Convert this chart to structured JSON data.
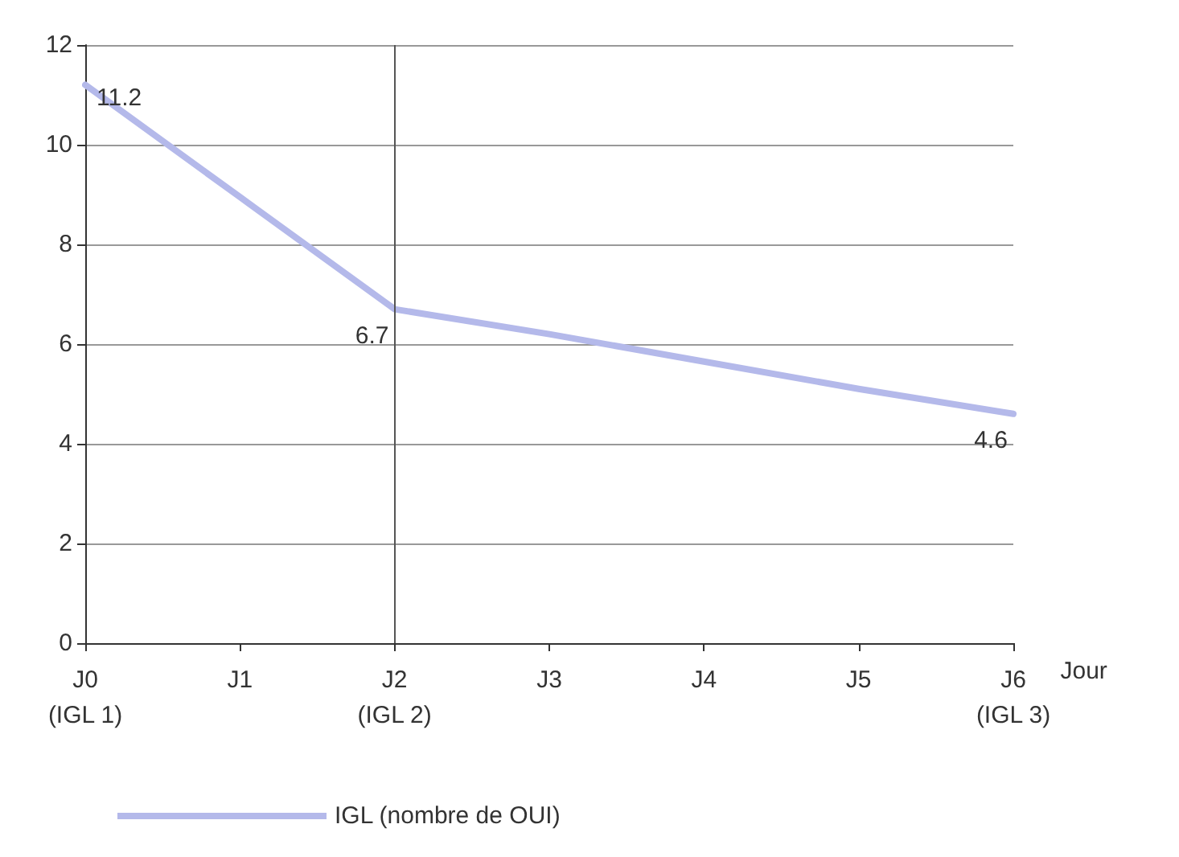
{
  "chart_data": {
    "type": "line",
    "xlabel": "Jour",
    "categories": [
      "J0\n(IGL 1)",
      "J1",
      "J2\n(IGL 2)",
      "J3",
      "J4",
      "J5",
      "J6\n(IGL 3)"
    ],
    "series": [
      {
        "name": "IGL (nombre de OUI)",
        "color": "#b4b9ea",
        "values": [
          11.2,
          8.95,
          6.7,
          6.2,
          5.65,
          5.1,
          4.6
        ],
        "value_labels": [
          "11.2",
          null,
          "6.7",
          null,
          null,
          null,
          "4.6"
        ]
      }
    ],
    "ylim": [
      0,
      12
    ],
    "yticks": [
      0,
      2,
      4,
      6,
      8,
      10,
      12
    ],
    "grid": "y",
    "legend": "bottom left",
    "marker": "none",
    "line_style": "solid",
    "ref_lines": [
      {
        "axis": "x",
        "value": "J2\n(IGL 2)",
        "color": "#555555"
      }
    ]
  }
}
